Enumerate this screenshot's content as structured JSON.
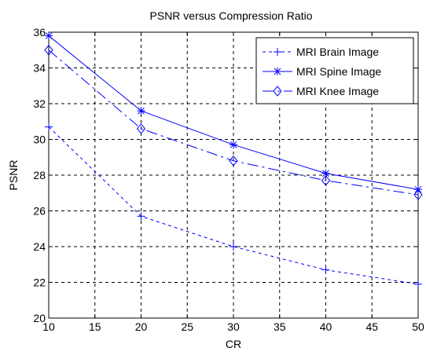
{
  "chart_data": {
    "type": "line",
    "title": "PSNR versus Compression Ratio",
    "xlabel": "CR",
    "ylabel": "PSNR",
    "xlim": [
      10,
      50
    ],
    "ylim": [
      20,
      36
    ],
    "x_ticks": [
      "10",
      "15",
      "20",
      "25",
      "30",
      "35",
      "40",
      "45",
      "50"
    ],
    "y_ticks": [
      "20",
      "22",
      "24",
      "26",
      "28",
      "30",
      "32",
      "34",
      "36"
    ],
    "grid": true,
    "legend_position": "top-right",
    "x": [
      10,
      20,
      30,
      40,
      50
    ],
    "series": [
      {
        "name": "MRI Brain Image",
        "values": [
          30.7,
          25.7,
          24.0,
          22.7,
          21.9
        ],
        "color": "#0000ff",
        "line_style": "dashed",
        "marker": "plus"
      },
      {
        "name": "MRI Spine Image",
        "values": [
          35.8,
          31.6,
          29.7,
          28.1,
          27.2
        ],
        "color": "#0000ff",
        "line_style": "solid",
        "marker": "asterisk"
      },
      {
        "name": "MRI Knee Image",
        "values": [
          35.0,
          30.6,
          28.8,
          27.7,
          26.9
        ],
        "color": "#0000ff",
        "line_style": "dash-dot",
        "marker": "diamond"
      }
    ]
  }
}
